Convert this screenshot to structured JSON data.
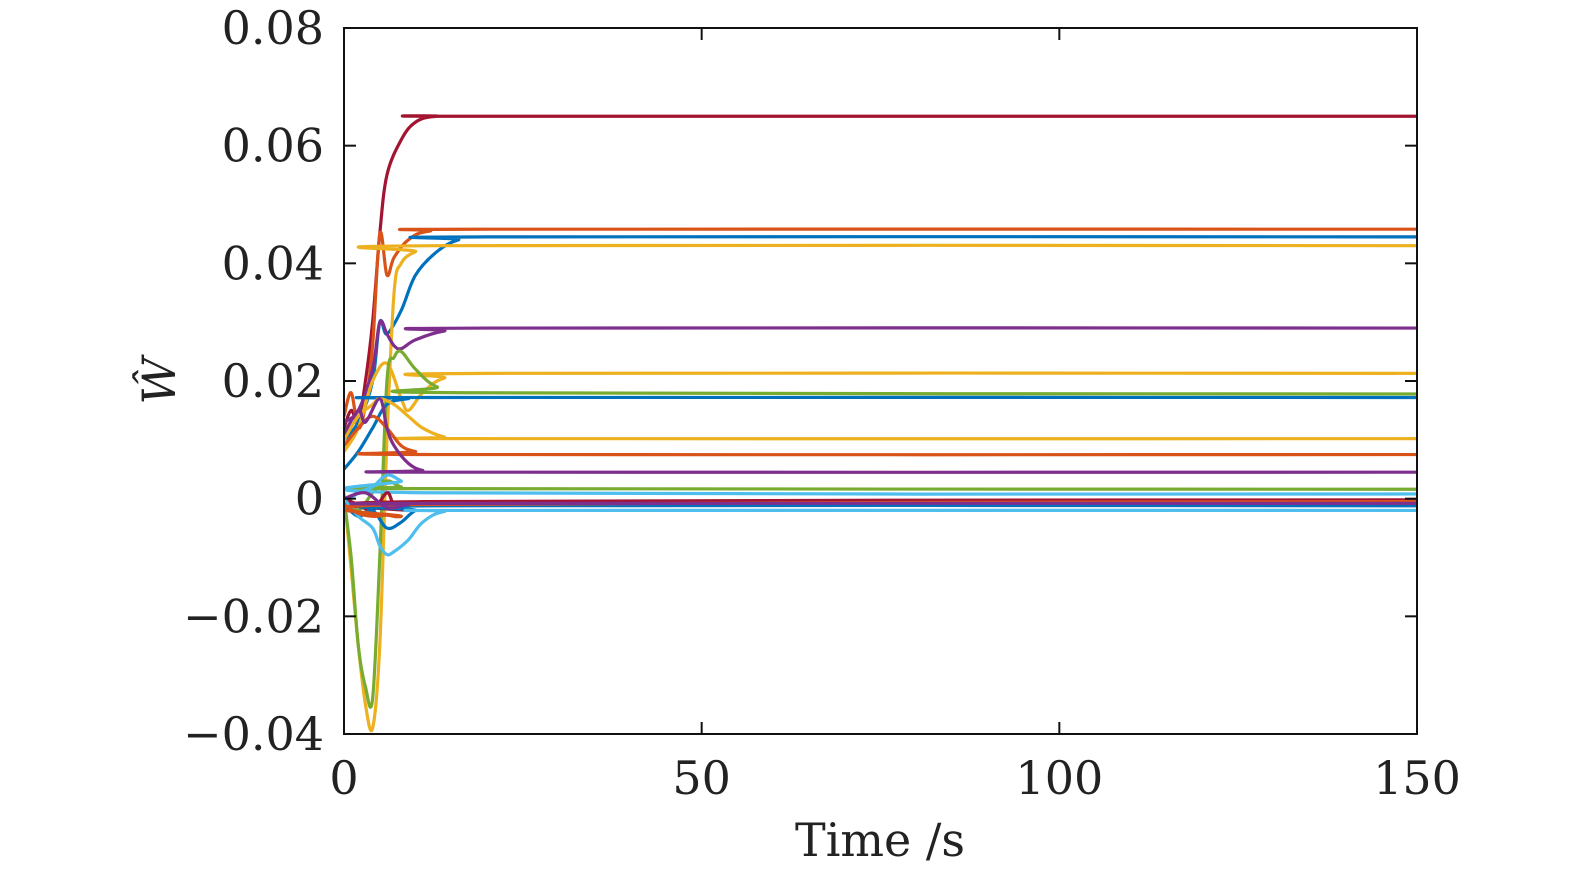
{
  "chart_data": {
    "type": "line",
    "title": "",
    "xlabel": "Time /s",
    "ylabel": "Ŵ",
    "xlim": [
      0,
      150
    ],
    "ylim": [
      -0.04,
      0.08
    ],
    "xticks": [
      0,
      50,
      100,
      150
    ],
    "xtick_labels": [
      "0",
      "50",
      "100",
      "150"
    ],
    "yticks": [
      -0.04,
      -0.02,
      0,
      0.02,
      0.04,
      0.06,
      0.08
    ],
    "ytick_labels": [
      "−0.04",
      "−0.02",
      "0",
      "0.02",
      "0.04",
      "0.06",
      "0.08"
    ],
    "grid": false,
    "legend": "none",
    "series": [
      {
        "color": "#a2142f",
        "points": [
          [
            0,
            0.012
          ],
          [
            1,
            0.015
          ],
          [
            2,
            0.013
          ],
          [
            3,
            0.02
          ],
          [
            4,
            0.03
          ],
          [
            5,
            0.045
          ],
          [
            6,
            0.055
          ],
          [
            8,
            0.061
          ],
          [
            10,
            0.064
          ],
          [
            13,
            0.065
          ],
          [
            20,
            0.065
          ],
          [
            150,
            0.065
          ]
        ]
      },
      {
        "color": "#d95319",
        "points": [
          [
            0,
            0.014
          ],
          [
            1,
            0.018
          ],
          [
            2,
            0.012
          ],
          [
            3,
            0.016
          ],
          [
            4,
            0.026
          ],
          [
            5,
            0.045
          ],
          [
            6,
            0.038
          ],
          [
            7,
            0.041
          ],
          [
            9,
            0.044
          ],
          [
            12,
            0.0455
          ],
          [
            20,
            0.0458
          ],
          [
            150,
            0.0458
          ]
        ]
      },
      {
        "color": "#0072bd",
        "points": [
          [
            0,
            0.01
          ],
          [
            2,
            0.013
          ],
          [
            4,
            0.02
          ],
          [
            5,
            0.03
          ],
          [
            6,
            0.028
          ],
          [
            8,
            0.032
          ],
          [
            10,
            0.038
          ],
          [
            13,
            0.042
          ],
          [
            16,
            0.044
          ],
          [
            20,
            0.0445
          ],
          [
            150,
            0.0445
          ]
        ]
      },
      {
        "color": "#edb120",
        "points": [
          [
            0,
            0.001
          ],
          [
            1,
            -0.012
          ],
          [
            2,
            -0.025
          ],
          [
            3,
            -0.035
          ],
          [
            4,
            -0.039
          ],
          [
            5,
            -0.025
          ],
          [
            6,
            0.01
          ],
          [
            7,
            0.035
          ],
          [
            8,
            0.04
          ],
          [
            10,
            0.042
          ],
          [
            13,
            0.043
          ],
          [
            150,
            0.043
          ]
        ]
      },
      {
        "color": "#7e2f8e",
        "points": [
          [
            0,
            0.013
          ],
          [
            2,
            0.015
          ],
          [
            4,
            0.022
          ],
          [
            5,
            0.03
          ],
          [
            6,
            0.028
          ],
          [
            7,
            0.026
          ],
          [
            8,
            0.0255
          ],
          [
            10,
            0.027
          ],
          [
            14,
            0.0285
          ],
          [
            20,
            0.029
          ],
          [
            150,
            0.029
          ]
        ]
      },
      {
        "color": "#edb120",
        "points": [
          [
            0,
            0.008
          ],
          [
            2,
            0.012
          ],
          [
            4,
            0.02
          ],
          [
            6,
            0.023
          ],
          [
            8,
            0.017
          ],
          [
            9,
            0.015
          ],
          [
            11,
            0.018
          ],
          [
            14,
            0.0205
          ],
          [
            20,
            0.0213
          ],
          [
            150,
            0.0213
          ]
        ]
      },
      {
        "color": "#77ac30",
        "points": [
          [
            0,
            0.0
          ],
          [
            1,
            -0.01
          ],
          [
            2,
            -0.025
          ],
          [
            3,
            -0.032
          ],
          [
            4,
            -0.034
          ],
          [
            5,
            -0.01
          ],
          [
            6,
            0.02
          ],
          [
            7,
            0.024
          ],
          [
            8,
            0.025
          ],
          [
            10,
            0.022
          ],
          [
            13,
            0.019
          ],
          [
            18,
            0.018
          ],
          [
            150,
            0.0178
          ]
        ]
      },
      {
        "color": "#0072bd",
        "points": [
          [
            0,
            0.005
          ],
          [
            2,
            0.008
          ],
          [
            4,
            0.012
          ],
          [
            6,
            0.016
          ],
          [
            9,
            0.017
          ],
          [
            13,
            0.0172
          ],
          [
            150,
            0.0172
          ]
        ]
      },
      {
        "color": "#edb120",
        "points": [
          [
            0,
            0.01
          ],
          [
            2,
            0.014
          ],
          [
            4,
            0.016
          ],
          [
            5,
            0.017
          ],
          [
            7,
            0.016
          ],
          [
            9,
            0.014
          ],
          [
            11,
            0.012
          ],
          [
            14,
            0.0105
          ],
          [
            18,
            0.0102
          ],
          [
            150,
            0.0102
          ]
        ]
      },
      {
        "color": "#d95319",
        "points": [
          [
            0,
            0.009
          ],
          [
            2,
            0.012
          ],
          [
            4,
            0.014
          ],
          [
            6,
            0.012
          ],
          [
            8,
            0.009
          ],
          [
            10,
            0.008
          ],
          [
            13,
            0.0075
          ],
          [
            150,
            0.0075
          ]
        ]
      },
      {
        "color": "#7e2f8e",
        "points": [
          [
            0,
            0.011
          ],
          [
            2,
            0.015
          ],
          [
            3,
            0.013
          ],
          [
            5,
            0.017
          ],
          [
            6,
            0.012
          ],
          [
            7,
            0.009
          ],
          [
            9,
            0.006
          ],
          [
            11,
            0.0048
          ],
          [
            14,
            0.0045
          ],
          [
            150,
            0.0045
          ]
        ]
      },
      {
        "color": "#77ac30",
        "points": [
          [
            0,
            0.0
          ],
          [
            2,
            -0.002
          ],
          [
            4,
            0.001
          ],
          [
            6,
            0.003
          ],
          [
            8,
            0.002
          ],
          [
            11,
            0.0017
          ],
          [
            150,
            0.0016
          ]
        ]
      },
      {
        "color": "#4dbeee",
        "points": [
          [
            0,
            -0.001
          ],
          [
            2,
            0.001
          ],
          [
            4,
            0.002
          ],
          [
            6,
            0.004
          ],
          [
            8,
            0.003
          ],
          [
            11,
            0.001
          ],
          [
            150,
            0.0008
          ]
        ]
      },
      {
        "color": "#a2142f",
        "points": [
          [
            0,
            0.0
          ],
          [
            2,
            -0.001
          ],
          [
            4,
            -0.002
          ],
          [
            6,
            0.001
          ],
          [
            7,
            -0.001
          ],
          [
            9,
            -0.002
          ],
          [
            11,
            -0.0005
          ],
          [
            150,
            -0.0002
          ]
        ]
      },
      {
        "color": "#0072bd",
        "points": [
          [
            0,
            -0.001
          ],
          [
            2,
            -0.003
          ],
          [
            4,
            -0.002
          ],
          [
            6,
            -0.005
          ],
          [
            8,
            -0.004
          ],
          [
            10,
            -0.002
          ],
          [
            13,
            -0.0012
          ],
          [
            150,
            -0.0012
          ]
        ]
      },
      {
        "color": "#4dbeee",
        "points": [
          [
            0,
            0.0
          ],
          [
            2,
            -0.003
          ],
          [
            4,
            -0.005
          ],
          [
            5,
            -0.008
          ],
          [
            6,
            -0.0095
          ],
          [
            7,
            -0.009
          ],
          [
            9,
            -0.007
          ],
          [
            11,
            -0.004
          ],
          [
            14,
            -0.0022
          ],
          [
            20,
            -0.002
          ],
          [
            150,
            -0.002
          ]
        ]
      },
      {
        "color": "#d95319",
        "points": [
          [
            0,
            -0.001
          ],
          [
            2,
            -0.0025
          ],
          [
            4,
            -0.003
          ],
          [
            6,
            -0.0028
          ],
          [
            8,
            -0.003
          ],
          [
            10,
            -0.001
          ],
          [
            150,
            -0.0005
          ]
        ]
      },
      {
        "color": "#7e2f8e",
        "points": [
          [
            0,
            0.0
          ],
          [
            3,
            0.001
          ],
          [
            6,
            -0.0015
          ],
          [
            9,
            -0.001
          ],
          [
            12,
            -0.0008
          ],
          [
            150,
            -0.0008
          ]
        ]
      }
    ]
  }
}
